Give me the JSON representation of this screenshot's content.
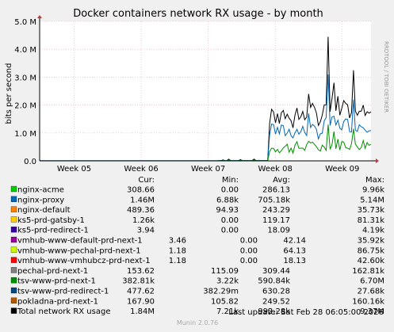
{
  "chart_data": {
    "type": "line",
    "title": "Docker containers network RX usage - by month",
    "ylabel": "bits per second",
    "ylim": [
      0,
      5000000
    ],
    "y_ticks": [
      "0.0",
      "1.0 M",
      "2.0 M",
      "3.0 M",
      "4.0 M",
      "5.0 M"
    ],
    "x_ticks": [
      "Week 05",
      "Week 06",
      "Week 07",
      "Week 08",
      "Week 09"
    ],
    "x_days": [
      0,
      7,
      14,
      21,
      28
    ],
    "x_range": [
      -3.6,
      31
    ],
    "grid": true,
    "side_text": "RRDTOOL / TOBI OETIKER",
    "legend_headers": [
      "Cur:",
      "Min:",
      "Avg:",
      "Max:"
    ],
    "series": [
      {
        "name": "nginx-acme",
        "color": "#00cc00",
        "cur": "308.66",
        "min": "0.00",
        "avg": "286.13",
        "max": "9.96k"
      },
      {
        "name": "nginx-proxy",
        "color": "#0066b3",
        "cur": "1.46M",
        "min": "6.88k",
        "avg": "705.18k",
        "max": "5.14M"
      },
      {
        "name": "nginx-default",
        "color": "#ff8000",
        "cur": "489.36",
        "min": "94.93",
        "avg": "243.29",
        "max": "35.73k"
      },
      {
        "name": "ks5-prd-gatsby-1",
        "color": "#ffcc00",
        "cur": "1.26k",
        "min": "0.00",
        "avg": "119.17",
        "max": "81.31k"
      },
      {
        "name": "ks5-prd-redirect-1",
        "color": "#330099",
        "cur": "3.94",
        "min": "0.00",
        "avg": "18.09",
        "max": "4.19k"
      },
      {
        "name": "vmhub-www-default-prd-next-1",
        "color": "#990099",
        "cur": "3.46",
        "min": "0.00",
        "avg": "42.14",
        "max": "35.92k"
      },
      {
        "name": "vmhub-www-pechal-prd-next-1",
        "color": "#ccff00",
        "cur": "1.18",
        "min": "0.00",
        "avg": "64.13",
        "max": "86.75k"
      },
      {
        "name": "vmhub-www-vmhubcz-prd-next-1",
        "color": "#ff0000",
        "cur": "1.18",
        "min": "0.00",
        "avg": "18.13",
        "max": "42.60k"
      },
      {
        "name": "pechal-prd-next-1",
        "color": "#808080",
        "cur": "153.62",
        "min": "115.09",
        "avg": "309.44",
        "max": "162.81k"
      },
      {
        "name": "tsv-www-prd-next-1",
        "color": "#008f00",
        "cur": "382.81k",
        "min": "3.22k",
        "avg": "590.84k",
        "max": "6.70M"
      },
      {
        "name": "tsv-www-prd-redirect-1",
        "color": "#00487d",
        "cur": "477.62",
        "min": "382.29m",
        "avg": "630.28",
        "max": "27.68k"
      },
      {
        "name": "pokladna-prd-next-1",
        "color": "#b35a00",
        "cur": "167.90",
        "min": "105.82",
        "avg": "249.52",
        "max": "160.16k"
      },
      {
        "name": "Total network RX usage",
        "color": "#000000",
        "cur": "1.84M",
        "min": "7.21k",
        "avg": "992.28k",
        "max": "9.37M"
      }
    ]
  },
  "footer": {
    "last_update": "Last update: Sat Feb 28 06:05:00 2026",
    "munin": "Munin 2.0.76"
  }
}
